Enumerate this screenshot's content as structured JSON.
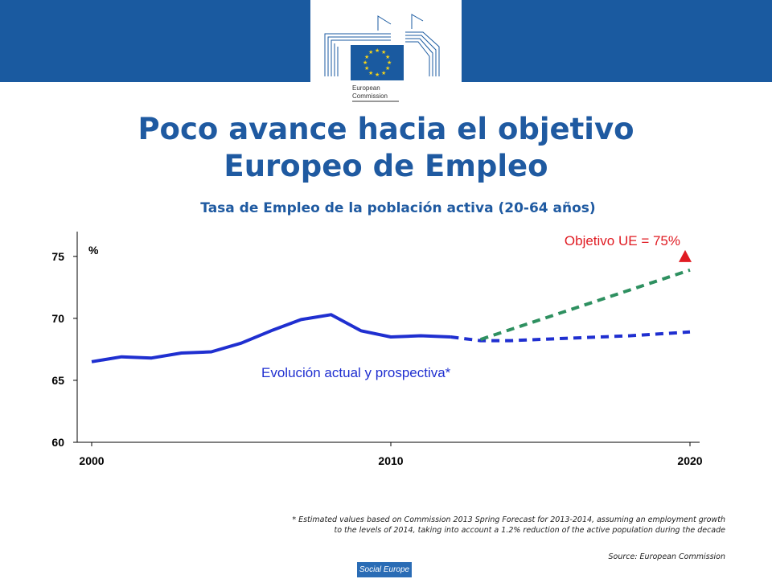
{
  "logo": {
    "line1": "European",
    "line2": "Commission"
  },
  "title": {
    "line1": "Poco avance hacia el objetivo",
    "line2": "Europeo de Empleo"
  },
  "subtitle": "Tasa de Empleo de la población activa (20-64 años)",
  "colors": {
    "header": "#1a5aa0",
    "actual": "#1f2fd0",
    "target_trend": "#2e9060",
    "target_marker": "#e01b22",
    "title": "#1f5aa1"
  },
  "chart_data": {
    "type": "line",
    "ylabel": "%",
    "ylim": [
      60,
      77
    ],
    "yticks": [
      60,
      65,
      70,
      75
    ],
    "xlim": [
      2000,
      2020
    ],
    "xticks": [
      2000,
      2010,
      2020
    ],
    "series": [
      {
        "name": "Evolución actual y prospectiva*",
        "style": "solid",
        "x": [
          2000,
          2001,
          2002,
          2003,
          2004,
          2005,
          2006,
          2007,
          2008,
          2009,
          2010,
          2011,
          2012
        ],
        "y": [
          66.5,
          66.9,
          66.8,
          67.2,
          67.3,
          68.0,
          69.0,
          69.9,
          70.3,
          69.0,
          68.5,
          68.6,
          68.5
        ]
      },
      {
        "name": "Evolución actual y prospectiva*",
        "style": "dashed",
        "x": [
          2012,
          2013,
          2014,
          2016,
          2018,
          2020
        ],
        "y": [
          68.5,
          68.2,
          68.2,
          68.4,
          68.6,
          68.9
        ]
      },
      {
        "name": "Objetivo UE = 75%",
        "style": "dashed",
        "x": [
          2013,
          2020
        ],
        "y": [
          68.3,
          73.9
        ]
      }
    ],
    "target_marker": {
      "x": 2020,
      "y": 75
    },
    "annotations": {
      "target_label": "Objetivo UE = 75%",
      "series_label": "Evolución actual y prospectiva*"
    }
  },
  "footnotes": {
    "line1": "* Estimated values based on Commission 2013 Spring Forecast for 2013-2014, assuming an employment growth",
    "line2": "to the levels of 2014, taking into account a 1.2% reduction of the active population during the decade",
    "source": "Source: European Commission"
  },
  "footer_badge": "Social Europe"
}
